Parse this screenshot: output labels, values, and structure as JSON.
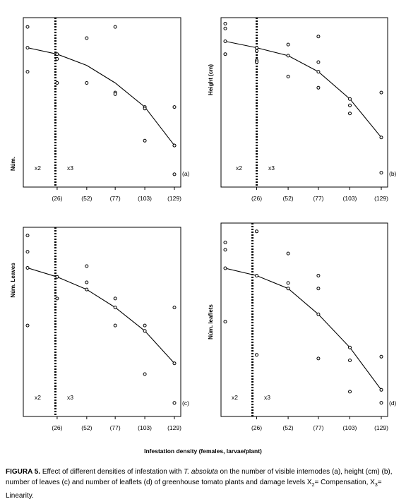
{
  "panels": [
    {
      "id": "a",
      "panel_label": "(a)",
      "ylabel": "Núm.",
      "zone_labels": [
        "x2",
        "x3"
      ],
      "x_tick_labels": [
        "(26)",
        "(52)",
        "(77)",
        "(103)",
        "(129)"
      ]
    },
    {
      "id": "b",
      "panel_label": "(b)",
      "ylabel": "Height (cm)",
      "zone_labels": [
        "x2",
        "x3"
      ],
      "x_tick_labels": [
        "(26)",
        "(52)",
        "(77)",
        "(103)",
        "(129)"
      ]
    },
    {
      "id": "c",
      "panel_label": "(c)",
      "ylabel": "Núm. Leaves",
      "zone_labels": [
        "x2",
        "x3"
      ],
      "x_tick_labels": [
        "(26)",
        "(52)",
        "(77)",
        "(103)",
        "(129)"
      ]
    },
    {
      "id": "d",
      "panel_label": "(d)",
      "ylabel": "Núm. leaflets",
      "zone_labels": [
        "x2",
        "x3"
      ],
      "x_tick_labels": [
        "(26)",
        "(52)",
        "(77)",
        "(103)",
        "(129)"
      ]
    }
  ],
  "x_axis_title": "Infestation density (females, larvae/plant)",
  "caption": {
    "label": "FIGURA 5.",
    "text_1": " Effect of different densities of infestation with ",
    "species": "T. absoluta",
    "text_2": " on the number of visible internodes (a), height (cm) (b), number of leaves (c) and number of leaflets (d) of greenhouse tomato plants and damage levels X",
    "sub_2": "2",
    "text_3": "= Compensation, X",
    "sub_3": "3",
    "text_4": "= Linearity."
  },
  "chart_data": [
    {
      "type": "scatter",
      "panel": "a",
      "x_categories": [
        "0",
        "(26)",
        "(52)",
        "(77)",
        "(103)",
        "(129)"
      ],
      "x": [
        0,
        26,
        52,
        77,
        103,
        129
      ],
      "ylim": [
        0,
        1
      ],
      "fitted_line": [
        0.83,
        0.79,
        0.72,
        0.61,
        0.46,
        0.22
      ],
      "threshold_x": 24.5,
      "points": [
        [
          0,
          0.96
        ],
        [
          0,
          0.83
        ],
        [
          0,
          0.68
        ],
        [
          26,
          0.79
        ],
        [
          26,
          0.76
        ],
        [
          26,
          0.61
        ],
        [
          52,
          0.89
        ],
        [
          52,
          0.61
        ],
        [
          77,
          0.96
        ],
        [
          77,
          0.55
        ],
        [
          77,
          0.54
        ],
        [
          103,
          0.46
        ],
        [
          103,
          0.45
        ],
        [
          103,
          0.25
        ],
        [
          129,
          0.46
        ],
        [
          129,
          0.22
        ],
        [
          129,
          0.22
        ],
        [
          129,
          0.04
        ]
      ]
    },
    {
      "type": "scatter",
      "panel": "b",
      "x_categories": [
        "0",
        "(26)",
        "(52)",
        "(77)",
        "(103)",
        "(129)"
      ],
      "x": [
        0,
        26,
        52,
        77,
        103,
        129
      ],
      "ylim": [
        0,
        1
      ],
      "fitted_line": [
        0.87,
        0.83,
        0.78,
        0.68,
        0.51,
        0.27
      ],
      "threshold_x": 26,
      "points": [
        [
          0,
          0.98
        ],
        [
          0,
          0.95
        ],
        [
          0,
          0.87
        ],
        [
          0,
          0.79
        ],
        [
          26,
          0.83
        ],
        [
          26,
          0.81
        ],
        [
          26,
          0.75
        ],
        [
          26,
          0.74
        ],
        [
          52,
          0.85
        ],
        [
          52,
          0.78
        ],
        [
          52,
          0.65
        ],
        [
          77,
          0.9
        ],
        [
          77,
          0.74
        ],
        [
          77,
          0.68
        ],
        [
          77,
          0.58
        ],
        [
          103,
          0.51
        ],
        [
          103,
          0.47
        ],
        [
          103,
          0.42
        ],
        [
          129,
          0.55
        ],
        [
          129,
          0.27
        ],
        [
          129,
          0.05
        ]
      ]
    },
    {
      "type": "scatter",
      "panel": "c",
      "x_categories": [
        "0",
        "(26)",
        "(52)",
        "(77)",
        "(103)",
        "(129)"
      ],
      "x": [
        0,
        26,
        52,
        77,
        103,
        129
      ],
      "ylim": [
        0,
        1
      ],
      "fitted_line": [
        0.79,
        0.74,
        0.67,
        0.57,
        0.44,
        0.26
      ],
      "threshold_x": 24.5,
      "points": [
        [
          0,
          0.97
        ],
        [
          0,
          0.88
        ],
        [
          0,
          0.79
        ],
        [
          0,
          0.47
        ],
        [
          26,
          0.74
        ],
        [
          26,
          0.62
        ],
        [
          52,
          0.8
        ],
        [
          52,
          0.71
        ],
        [
          52,
          0.67
        ],
        [
          77,
          0.62
        ],
        [
          77,
          0.57
        ],
        [
          77,
          0.47
        ],
        [
          103,
          0.47
        ],
        [
          103,
          0.44
        ],
        [
          103,
          0.2
        ],
        [
          129,
          0.57
        ],
        [
          129,
          0.26
        ],
        [
          129,
          0.04
        ]
      ]
    },
    {
      "type": "scatter",
      "panel": "d",
      "x_categories": [
        "0",
        "(26)",
        "(52)",
        "(77)",
        "(103)",
        "(129)"
      ],
      "x": [
        0,
        26,
        52,
        77,
        103,
        129
      ],
      "ylim": [
        0,
        1
      ],
      "fitted_line": [
        0.77,
        0.73,
        0.66,
        0.52,
        0.34,
        0.11
      ],
      "threshold_x": 22.5,
      "points": [
        [
          0,
          0.91
        ],
        [
          0,
          0.87
        ],
        [
          0,
          0.77
        ],
        [
          0,
          0.48
        ],
        [
          26,
          0.97
        ],
        [
          26,
          0.73
        ],
        [
          26,
          0.3
        ],
        [
          52,
          0.85
        ],
        [
          52,
          0.69
        ],
        [
          52,
          0.66
        ],
        [
          77,
          0.73
        ],
        [
          77,
          0.66
        ],
        [
          77,
          0.52
        ],
        [
          77,
          0.28
        ],
        [
          103,
          0.34
        ],
        [
          103,
          0.27
        ],
        [
          103,
          0.1
        ],
        [
          129,
          0.29
        ],
        [
          129,
          0.11
        ],
        [
          129,
          0.04
        ]
      ]
    }
  ]
}
